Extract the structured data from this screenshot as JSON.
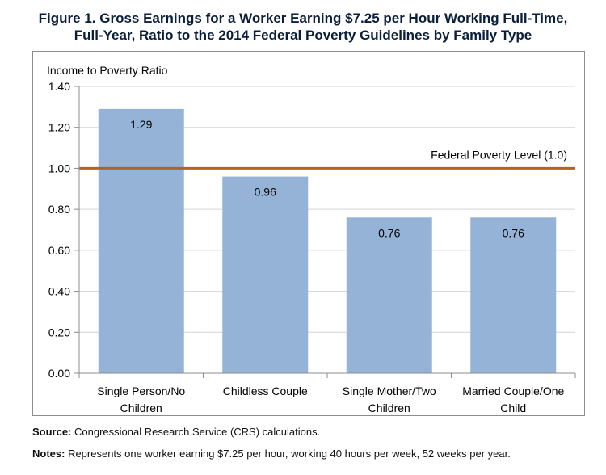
{
  "figure": {
    "title_line1": "Figure 1. Gross Earnings for a Worker Earning $7.25 per Hour Working Full-Time,",
    "title_line2": "Full-Year, Ratio to the 2014 Federal Poverty Guidelines by Family Type"
  },
  "chart_data": {
    "type": "bar",
    "title": "Figure 1. Gross Earnings for a Worker Earning $7.25 per Hour Working Full-Time, Full-Year, Ratio to the 2014 Federal Poverty Guidelines by Family Type",
    "ylabel": "Income to Poverty Ratio",
    "xlabel": "",
    "ylim": [
      0,
      1.4
    ],
    "yticks": [
      "0.00",
      "0.20",
      "0.40",
      "0.60",
      "0.80",
      "1.00",
      "1.20",
      "1.40"
    ],
    "ytick_values": [
      0,
      0.2,
      0.4,
      0.6,
      0.8,
      1.0,
      1.2,
      1.4
    ],
    "categories": [
      [
        "Single Person/No",
        "Children"
      ],
      [
        "Childless Couple"
      ],
      [
        "Single Mother/Two",
        "Children"
      ],
      [
        "Married Couple/One",
        "Child"
      ]
    ],
    "values": [
      1.29,
      0.96,
      0.76,
      0.76
    ],
    "data_labels": [
      "1.29",
      "0.96",
      "0.76",
      "0.76"
    ],
    "reference_line": {
      "value": 1.0,
      "label": "Federal Poverty Level (1.0)"
    },
    "grid": true,
    "colors": {
      "bar": "#95b3d7",
      "reference_line": "#b8611f",
      "grid": "#d4d4d4",
      "axis": "#8c8c8c"
    }
  },
  "source": {
    "label": "Source:",
    "text": " Congressional Research Service (CRS) calculations."
  },
  "notes": {
    "label": "Notes:",
    "text": " Represents one worker earning $7.25 per hour, working 40 hours per week, 52 weeks per year."
  }
}
